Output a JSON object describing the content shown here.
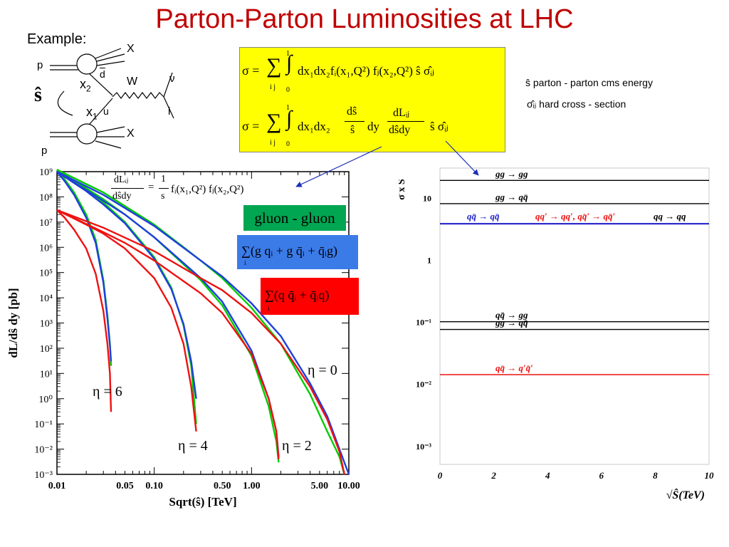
{
  "title": "Parton-Parton Luminosities at LHC",
  "example": {
    "label": "Example:",
    "p_top": "p",
    "p_bottom": "p",
    "x_top": "X",
    "x_bottom": "X",
    "x2": "x",
    "x2_sub": "2",
    "x1": "x",
    "x1_sub": "1",
    "dbar": "d",
    "u": "u",
    "w": "W",
    "nu": "ν",
    "l": "l",
    "shat": "ŝ"
  },
  "formulas": {
    "f1_lhs": "σ =",
    "f1_sum": "∑",
    "f1_sum_sub": "i j",
    "f1_int_top": "1",
    "f1_int_bot": "0",
    "f1_body": "dx₁dx₂fᵢ(x₁,Q²) fⱼ(x₂,Q²) ŝ σ̂ᵢⱼ",
    "f2_lhs": "σ =",
    "f2_sum": "∑",
    "f2_sum_sub": "i j",
    "f2_int_top": "1",
    "f2_int_bot": "0",
    "f2_pre": "dx₁dx₂",
    "f2_frac1_num": "dŝ",
    "f2_frac1_den": "ŝ",
    "f2_mid": "dy",
    "f2_frac2_num": "dLᵢⱼ",
    "f2_frac2_den": "dŝdy",
    "f2_post": "ŝ σ̂ᵢⱼ",
    "note1": "ŝ parton - parton cms energy",
    "note2": "σ̂ᵢⱼ hard cross - section",
    "lumi_lhs_num": "dLᵢⱼ",
    "lumi_lhs_den": "dŝdy",
    "lumi_eq": "=",
    "lumi_rhs_num": "1",
    "lumi_rhs_den": "s",
    "lumi_rhs": "fᵢ(x₁,Q²) fⱼ(x₂,Q²)"
  },
  "legend": {
    "gluon_gluon": "gluon - gluon",
    "gq": "∑(g qᵢ + g q̄ᵢ + q̄ᵢg)",
    "gq_sub": "i",
    "qq": "∑(q q̄ᵢ + q̄ᵢq)",
    "qq_sub": "i",
    "colors": {
      "green": "#00a651",
      "blue": "#2f6fd8",
      "red": "#ee1111"
    }
  },
  "chart_data": [
    {
      "type": "line",
      "xlabel": "Sqrt(ŝ) [TeV]",
      "ylabel": "dL/dŝ dy [pb]",
      "xscale": "log",
      "yscale": "log",
      "xlim": [
        0.01,
        10.0
      ],
      "ylim": [
        0.001,
        1000000000
      ],
      "x_ticks": [
        "0.01",
        "0.05",
        "0.10",
        "0.50",
        "1.00",
        "5.00",
        "10.00"
      ],
      "x_tick_values": [
        0.01,
        0.05,
        0.1,
        0.5,
        1.0,
        5.0,
        10.0
      ],
      "y_ticks": [
        "10⁹",
        "10⁸",
        "10⁷",
        "10⁶",
        "10⁵",
        "10⁴",
        "10³",
        "10²",
        "10¹",
        "10⁰",
        "10⁻¹",
        "10⁻²",
        "10⁻³"
      ],
      "y_tick_exponents": [
        9,
        8,
        7,
        6,
        5,
        4,
        3,
        2,
        1,
        0,
        -1,
        -2,
        -3
      ],
      "eta_labels": [
        "η = 0",
        "η = 2",
        "η = 4",
        "η = 6"
      ],
      "series": [
        {
          "color": "#00cc00",
          "eta": 6,
          "x": [
            0.01,
            0.012,
            0.015,
            0.02,
            0.025,
            0.03,
            0.033,
            0.035,
            0.036
          ],
          "y": [
            1200000000,
            500000000,
            150000000,
            20000000,
            2000000,
            50000,
            2000,
            150,
            20
          ]
        },
        {
          "color": "#1f3fdd",
          "eta": 6,
          "x": [
            0.01,
            0.012,
            0.015,
            0.02,
            0.025,
            0.03,
            0.033,
            0.035,
            0.036
          ],
          "y": [
            1000000000,
            420000000,
            120000000,
            15000000,
            1500000,
            40000,
            1500,
            130,
            30
          ]
        },
        {
          "color": "#ee1111",
          "eta": 6,
          "x": [
            0.01,
            0.012,
            0.015,
            0.02,
            0.025,
            0.03,
            0.033,
            0.035,
            0.036
          ],
          "y": [
            30000000,
            15000000,
            5000000,
            900000,
            90000,
            3000,
            150,
            10,
            0.3
          ]
        },
        {
          "color": "#00cc00",
          "eta": 4,
          "x": [
            0.01,
            0.02,
            0.03,
            0.05,
            0.1,
            0.15,
            0.2,
            0.24,
            0.27
          ],
          "y": [
            1200000000,
            200000000,
            60000000,
            10000000,
            400000,
            25000,
            800,
            20,
            0.1
          ]
        },
        {
          "color": "#1f3fdd",
          "eta": 4,
          "x": [
            0.01,
            0.02,
            0.03,
            0.05,
            0.1,
            0.15,
            0.2,
            0.24,
            0.27
          ],
          "y": [
            1000000000,
            170000000,
            50000000,
            9000000,
            350000,
            22000,
            900,
            30,
            1
          ]
        },
        {
          "color": "#ee1111",
          "eta": 4,
          "x": [
            0.01,
            0.02,
            0.03,
            0.05,
            0.1,
            0.15,
            0.2,
            0.24,
            0.27
          ],
          "y": [
            30000000,
            8000000,
            3500000,
            900000,
            60000,
            4000,
            150,
            3,
            0.05
          ]
        },
        {
          "color": "#00cc00",
          "eta": 2,
          "x": [
            0.01,
            0.03,
            0.05,
            0.1,
            0.3,
            0.5,
            1.0,
            1.5,
            1.8,
            1.9
          ],
          "y": [
            1200000000,
            80000000,
            20000000,
            2500000,
            50000,
            5000,
            50,
            0.5,
            0.02,
            0.003
          ]
        },
        {
          "color": "#1f3fdd",
          "eta": 2,
          "x": [
            0.01,
            0.03,
            0.05,
            0.1,
            0.3,
            0.5,
            1.0,
            1.5,
            1.8,
            1.9
          ],
          "y": [
            1000000000,
            70000000,
            20000000,
            2500000,
            60000,
            7000,
            80,
            1,
            0.05,
            0.005
          ]
        },
        {
          "color": "#ee1111",
          "eta": 2,
          "x": [
            0.01,
            0.03,
            0.05,
            0.1,
            0.3,
            0.5,
            1.0,
            1.5,
            1.8,
            1.9
          ],
          "y": [
            30000000,
            4000000,
            1500000,
            300000,
            15000,
            2500,
            60,
            1,
            0.05,
            0.004
          ]
        },
        {
          "color": "#00cc00",
          "eta": 0,
          "x": [
            0.01,
            0.03,
            0.1,
            0.3,
            0.5,
            1.0,
            2.0,
            4.0,
            6.0,
            8.0,
            9.0
          ],
          "y": [
            1200000000,
            150000000,
            8000000,
            300000,
            60000,
            4000,
            150,
            1.5,
            0.05,
            0.005,
            0.001
          ]
        },
        {
          "color": "#1f3fdd",
          "eta": 0,
          "x": [
            0.01,
            0.03,
            0.1,
            0.3,
            0.5,
            1.0,
            2.0,
            4.0,
            6.0,
            8.0,
            10.0
          ],
          "y": [
            1000000000,
            120000000,
            7000000,
            300000,
            70000,
            6000,
            300,
            4,
            0.2,
            0.01,
            0.001
          ]
        },
        {
          "color": "#ee1111",
          "eta": 0,
          "x": [
            0.01,
            0.03,
            0.1,
            0.3,
            0.5,
            1.0,
            2.0,
            4.0,
            6.0,
            8.0,
            9.0
          ],
          "y": [
            30000000,
            6000000,
            700000,
            60000,
            20000,
            2500,
            150,
            3,
            0.15,
            0.008,
            0.001
          ]
        }
      ]
    },
    {
      "type": "line",
      "xlabel": "√Ŝ(TeV)",
      "ylabel": "σ̂ x Ŝ",
      "yscale": "log",
      "xlim": [
        0,
        10
      ],
      "ylim": [
        0.0005,
        30
      ],
      "x_ticks": [
        "0",
        "2",
        "4",
        "6",
        "8",
        "10"
      ],
      "x_tick_values": [
        0,
        2,
        4,
        6,
        8,
        10
      ],
      "y_ticks": [
        "10",
        "1",
        "10⁻¹",
        "10⁻²",
        "10⁻³"
      ],
      "y_tick_values": [
        10,
        1,
        0.1,
        0.01,
        0.001
      ],
      "series": [
        {
          "name": "gg → gg",
          "color": "#000000",
          "y": 19
        },
        {
          "name": "gg → qq̄",
          "color": "#000000",
          "y": 8
        },
        {
          "name": "qq̄ → qq̄   qq′ → qq′, qq̄′ → qq̄′   qq → qq",
          "color": "#3030cc",
          "y": 3.8
        },
        {
          "name": "qq̄ → gg",
          "color": "#000000",
          "y": 0.1
        },
        {
          "name": "gg → qq̄",
          "color": "#000000",
          "y": 0.075
        },
        {
          "name": "qq̄ → q′q̄′",
          "color": "#ee1111",
          "y": 0.014
        }
      ],
      "labels": {
        "gggg": "gg → gg",
        "ggqq": "gg → qq̄",
        "qqqq_blue": "qq̄ → qq̄",
        "qqprime_red": "qq′ → qq′, qq̄′ → qq̄′",
        "qqqq_black": "qq → qq",
        "qqgg": "qq̄ → gg",
        "ggqq2": "gg → qq̄",
        "qqqprime": "qq̄ → q′q̄′"
      }
    }
  ]
}
